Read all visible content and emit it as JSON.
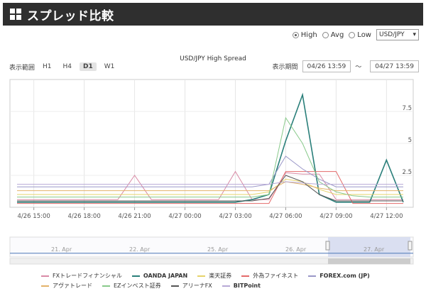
{
  "page_title": "スプレッド比較",
  "controls": {
    "radios": [
      {
        "label": "High",
        "selected": true
      },
      {
        "label": "Avg",
        "selected": false
      },
      {
        "label": "Low",
        "selected": false
      }
    ],
    "pair_select": "USD/JPY"
  },
  "chart": {
    "title": "USD/JPY High Spread",
    "range_label": "表示範囲",
    "range_buttons": [
      {
        "label": "H1",
        "active": false
      },
      {
        "label": "H4",
        "active": false
      },
      {
        "label": "D1",
        "active": true
      },
      {
        "label": "W1",
        "active": false
      }
    ],
    "period_label": "表示期間",
    "period_from": "04/26 13:59",
    "period_sep": "〜",
    "period_to": "04/27 13:59"
  },
  "chart_data": {
    "type": "line",
    "title": "USD/JPY High Spread",
    "x_ticks": [
      "4/26 15:00",
      "4/26 18:00",
      "4/26 21:00",
      "4/27 00:00",
      "4/27 03:00",
      "4/27 06:00",
      "4/27 09:00",
      "4/27 12:00"
    ],
    "y_ticks": [
      "2.5",
      "5",
      "7.5"
    ],
    "ylim": [
      0,
      10
    ],
    "navigator_labels": [
      "21. Apr",
      "22. Apr",
      "25. Apr",
      "26. Apr",
      "27. Apr"
    ],
    "x": [
      "14:00",
      "15:00",
      "16:00",
      "17:00",
      "18:00",
      "19:00",
      "20:00",
      "21:00",
      "22:00",
      "23:00",
      "00:00",
      "01:00",
      "02:00",
      "03:00",
      "04:00",
      "05:00",
      "06:00",
      "07:00",
      "08:00",
      "09:00",
      "10:00",
      "11:00",
      "12:00",
      "13:00"
    ],
    "series": [
      {
        "name": "FXトレードフィナンシャル",
        "color": "#d98aa6",
        "values": [
          0.6,
          0.6,
          0.6,
          0.6,
          0.6,
          0.6,
          0.6,
          2.5,
          0.6,
          0.6,
          0.6,
          0.6,
          0.6,
          2.8,
          0.6,
          0.6,
          2.7,
          2.6,
          2.6,
          0.6,
          0.6,
          0.6,
          0.6,
          0.6
        ]
      },
      {
        "name": "OANDA JAPAN",
        "color": "#2a7f7a",
        "values": [
          0.4,
          0.4,
          0.4,
          0.4,
          0.4,
          0.4,
          0.4,
          0.4,
          0.4,
          0.4,
          0.4,
          0.4,
          0.4,
          0.4,
          0.6,
          1.0,
          5.2,
          8.8,
          1.0,
          0.4,
          0.4,
          0.4,
          3.7,
          0.4
        ]
      },
      {
        "name": "楽天証券",
        "color": "#e6d36a",
        "values": [
          1.0,
          1.0,
          1.0,
          1.0,
          1.0,
          1.0,
          1.0,
          1.0,
          1.0,
          1.0,
          1.0,
          1.0,
          1.0,
          1.0,
          1.0,
          1.2,
          2.2,
          2.0,
          1.4,
          1.0,
          1.0,
          1.0,
          1.0,
          1.0
        ]
      },
      {
        "name": "外為ファイネスト",
        "color": "#e46a6a",
        "values": [
          0.3,
          0.3,
          0.3,
          0.3,
          0.3,
          0.3,
          0.3,
          0.3,
          0.3,
          0.3,
          0.3,
          0.3,
          0.3,
          0.3,
          0.3,
          0.3,
          2.8,
          2.8,
          2.8,
          2.8,
          0.3,
          0.3,
          0.3,
          0.3
        ]
      },
      {
        "name": "FOREX.com (JP)",
        "color": "#9a97c8",
        "values": [
          1.6,
          1.6,
          1.6,
          1.6,
          1.6,
          1.6,
          1.6,
          1.6,
          1.6,
          1.6,
          1.6,
          1.6,
          1.6,
          1.6,
          1.6,
          1.8,
          4.0,
          3.0,
          2.2,
          1.6,
          1.6,
          1.6,
          1.6,
          1.6
        ]
      },
      {
        "name": "アヴァトレード",
        "color": "#e3b26a",
        "values": [
          1.3,
          1.3,
          1.3,
          1.3,
          1.3,
          1.3,
          1.3,
          1.3,
          1.3,
          1.3,
          1.3,
          1.3,
          1.3,
          1.3,
          1.3,
          1.3,
          2.0,
          1.8,
          1.5,
          1.3,
          1.3,
          1.3,
          1.3,
          1.3
        ]
      },
      {
        "name": "EZインベスト証券",
        "color": "#88c98a",
        "values": [
          0.8,
          0.8,
          0.8,
          0.8,
          0.8,
          0.8,
          0.8,
          0.8,
          0.8,
          0.8,
          0.8,
          0.8,
          0.8,
          0.8,
          0.8,
          1.0,
          7.0,
          5.0,
          2.0,
          1.2,
          0.9,
          0.8,
          0.8,
          0.8
        ]
      },
      {
        "name": "アリーナFX",
        "color": "#555555",
        "values": [
          0.5,
          0.5,
          0.5,
          0.5,
          0.5,
          0.5,
          0.5,
          0.5,
          0.5,
          0.5,
          0.5,
          0.5,
          0.5,
          0.5,
          0.5,
          0.7,
          2.5,
          2.0,
          1.0,
          0.5,
          0.5,
          0.5,
          0.5,
          0.5
        ]
      },
      {
        "name": "BITPoint",
        "color": "#b7a9d6",
        "values": [
          1.8,
          1.8,
          1.8,
          1.8,
          1.8,
          1.8,
          1.8,
          1.8,
          1.8,
          1.8,
          1.8,
          1.8,
          1.8,
          1.8,
          1.8,
          1.8,
          2.0,
          1.9,
          1.8,
          1.8,
          1.8,
          1.8,
          1.8,
          1.8
        ]
      }
    ],
    "navigator": {
      "values": [
        0.3,
        0.3,
        0.3,
        0.3,
        0.3,
        0.3,
        0.3,
        0.3,
        0.3,
        0.3,
        0.3,
        0.3,
        0.3,
        0.3,
        0.3,
        0.3,
        0.3,
        0.3,
        0.3,
        0.3,
        0.3,
        0.3,
        0.3,
        0.3
      ]
    }
  },
  "legend_rows": [
    [
      "FXトレードフィナンシャル",
      "OANDA JAPAN",
      "楽天証券",
      "外為ファイネスト",
      "FOREX.com (JP)"
    ],
    [
      "アヴァトレード",
      "EZインベスト証券",
      "アリーナFX",
      "BITPoint"
    ]
  ]
}
